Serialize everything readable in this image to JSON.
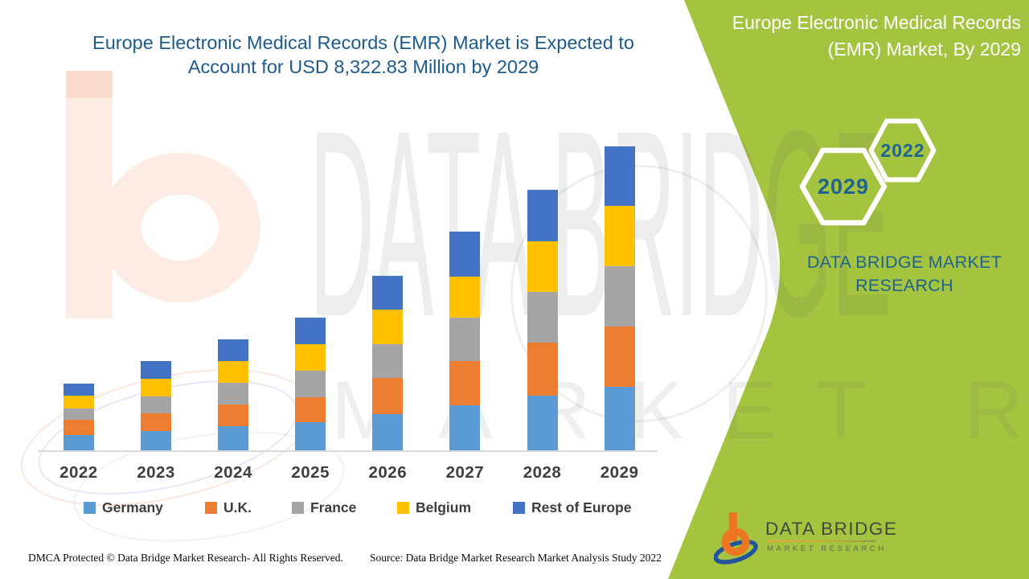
{
  "main_title": "Europe Electronic Medical Records (EMR) Market is Expected to Account for USD 8,322.83 Million by 2029",
  "side_panel": {
    "title": "Europe Electronic Medical Records (EMR) Market, By 2029",
    "hexagon_large_year": "2029",
    "hexagon_small_year": "2022",
    "brand_caption": "DATA BRIDGE MARKET RESEARCH"
  },
  "chart_data": {
    "type": "bar",
    "stacked": true,
    "title": "Europe Electronic Medical Records (EMR) Market is Expected to Account for USD 8,322.83 Million by 2029",
    "units": "USD Million",
    "categories": [
      "2022",
      "2023",
      "2024",
      "2025",
      "2026",
      "2027",
      "2028",
      "2029"
    ],
    "series": [
      {
        "name": "Germany",
        "color": "#5B9BD5",
        "values": [
          410,
          520,
          655,
          775,
          995,
          1240,
          1490,
          1735
        ]
      },
      {
        "name": "U.K.",
        "color": "#ED7D31",
        "values": [
          425,
          490,
          600,
          675,
          980,
          1205,
          1465,
          1650
        ]
      },
      {
        "name": "France",
        "color": "#A5A5A5",
        "values": [
          310,
          460,
          600,
          735,
          930,
          1195,
          1380,
          1650
        ]
      },
      {
        "name": "Belgium",
        "color": "#FFC000",
        "values": [
          345,
          500,
          595,
          720,
          940,
          1125,
          1395,
          1665
        ]
      },
      {
        "name": "Rest of Europe",
        "color": "#4472C4",
        "values": [
          340,
          470,
          580,
          735,
          930,
          1225,
          1395,
          1622.83
        ]
      }
    ],
    "stated_total_2029": 8322.83,
    "legend_position": "bottom",
    "value_axis_visible": false,
    "gridlines": false,
    "estimation_note": "No value axis is shown; segment values are estimated from bar heights and scaled so the 2029 total equals the stated USD 8,322.83 Million."
  },
  "footer": {
    "dmca_text": "DMCA Protected © Data Bridge Market Research- All Rights Reserved.",
    "source_text": "Source: Data Bridge Market Research Market Analysis Study 2022"
  },
  "logo": {
    "name": "DATA BRIDGE",
    "subtitle": "MARKET RESEARCH"
  },
  "watermark": {
    "line1": "DATA BRIDGE",
    "line2": "MARKET RESEARCH"
  },
  "colors": {
    "green_panel": "#a4c43f",
    "title_text": "#1d5b8c",
    "teal_text": "#20638f",
    "axis_line": "#d9d9d9",
    "year_label": "#3e3e3e",
    "legend_label": "#3d3d3d"
  }
}
